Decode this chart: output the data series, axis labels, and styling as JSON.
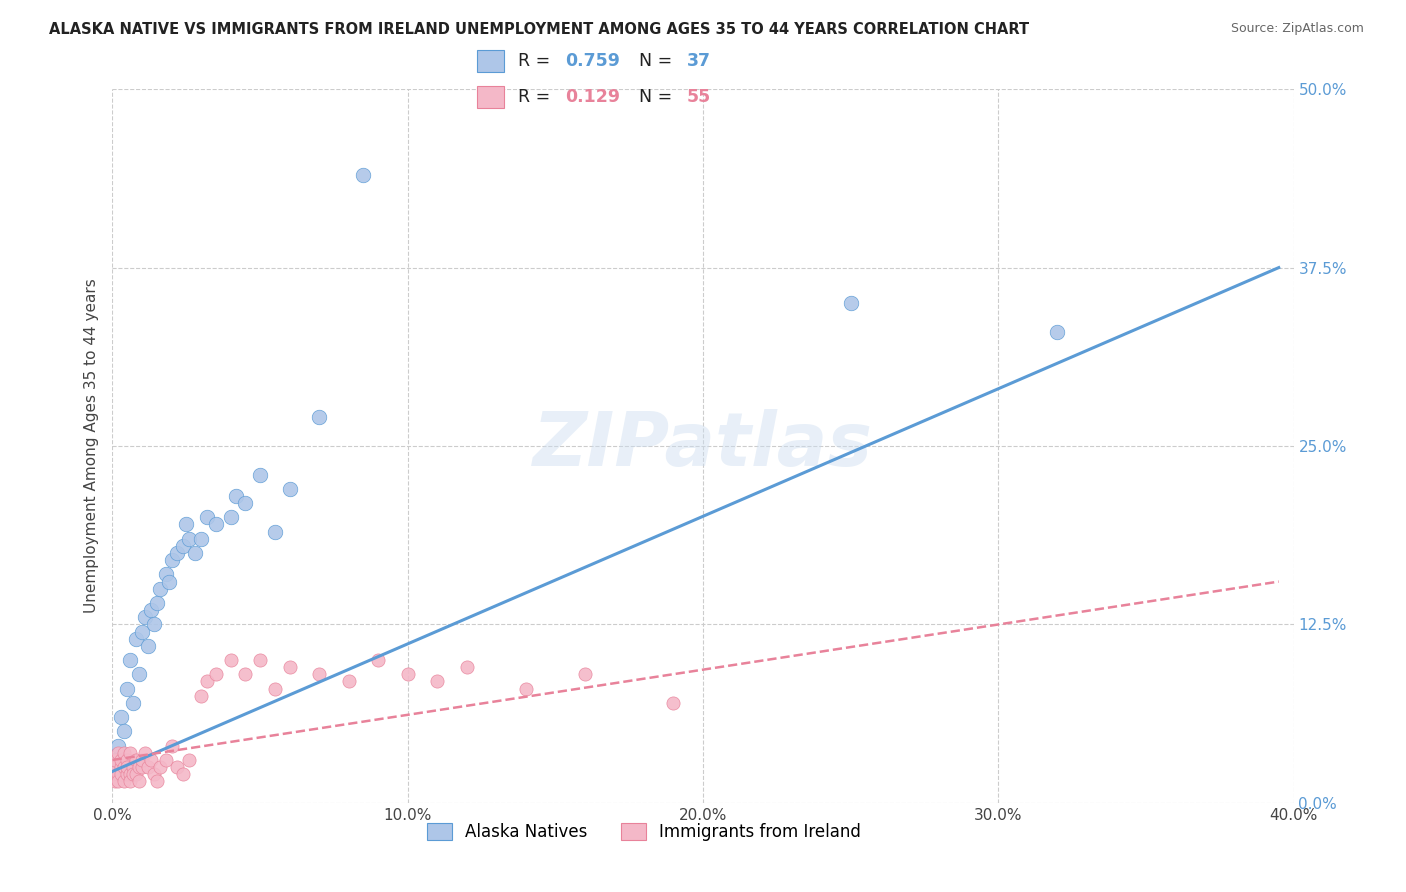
{
  "title": "ALASKA NATIVE VS IMMIGRANTS FROM IRELAND UNEMPLOYMENT AMONG AGES 35 TO 44 YEARS CORRELATION CHART",
  "source": "Source: ZipAtlas.com",
  "xlabel_ticks": [
    "0.0%",
    "",
    "",
    "",
    "10.0%",
    "",
    "",
    "",
    "20.0%",
    "",
    "",
    "",
    "30.0%",
    "",
    "",
    "",
    "40.0%"
  ],
  "xlabel_tick_vals": [
    0.0,
    0.025,
    0.05,
    0.075,
    0.1,
    0.125,
    0.15,
    0.175,
    0.2,
    0.225,
    0.25,
    0.275,
    0.3,
    0.325,
    0.35,
    0.375,
    0.4
  ],
  "xlabel_major_ticks": [
    0.0,
    0.1,
    0.2,
    0.3,
    0.4
  ],
  "xlabel_major_labels": [
    "0.0%",
    "10.0%",
    "20.0%",
    "30.0%",
    "40.0%"
  ],
  "ylabel_ticks": [
    "50.0%",
    "37.5%",
    "25.0%",
    "12.5%",
    "0.0%"
  ],
  "ylabel_tick_vals": [
    0.5,
    0.375,
    0.25,
    0.125,
    0.0
  ],
  "ylabel": "Unemployment Among Ages 35 to 44 years",
  "legend_bottom": [
    "Alaska Natives",
    "Immigrants from Ireland"
  ],
  "alaska_R": "0.759",
  "alaska_N": "37",
  "ireland_R": "0.129",
  "ireland_N": "55",
  "alaska_color": "#aec6e8",
  "ireland_color": "#f4b8c8",
  "alaska_line_color": "#5b9bd5",
  "ireland_line_color": "#e8829a",
  "background_color": "#ffffff",
  "watermark": "ZIPatlas",
  "alaska_line_x0": 0.0,
  "alaska_line_y0": 0.022,
  "alaska_line_x1": 0.395,
  "alaska_line_y1": 0.375,
  "ireland_line_x0": 0.0,
  "ireland_line_y0": 0.03,
  "ireland_line_x1": 0.395,
  "ireland_line_y1": 0.155,
  "alaska_x": [
    0.001,
    0.002,
    0.003,
    0.004,
    0.005,
    0.006,
    0.007,
    0.008,
    0.009,
    0.01,
    0.011,
    0.012,
    0.013,
    0.014,
    0.015,
    0.016,
    0.018,
    0.019,
    0.02,
    0.022,
    0.024,
    0.025,
    0.026,
    0.028,
    0.03,
    0.032,
    0.035,
    0.04,
    0.042,
    0.045,
    0.05,
    0.055,
    0.06,
    0.07,
    0.085,
    0.25,
    0.32
  ],
  "alaska_y": [
    0.03,
    0.04,
    0.06,
    0.05,
    0.08,
    0.1,
    0.07,
    0.115,
    0.09,
    0.12,
    0.13,
    0.11,
    0.135,
    0.125,
    0.14,
    0.15,
    0.16,
    0.155,
    0.17,
    0.175,
    0.18,
    0.195,
    0.185,
    0.175,
    0.185,
    0.2,
    0.195,
    0.2,
    0.215,
    0.21,
    0.23,
    0.19,
    0.22,
    0.27,
    0.44,
    0.35,
    0.33
  ],
  "ireland_x": [
    0.0,
    0.001,
    0.001,
    0.001,
    0.002,
    0.002,
    0.002,
    0.003,
    0.003,
    0.003,
    0.004,
    0.004,
    0.004,
    0.005,
    0.005,
    0.005,
    0.006,
    0.006,
    0.006,
    0.007,
    0.007,
    0.008,
    0.008,
    0.009,
    0.009,
    0.01,
    0.01,
    0.011,
    0.012,
    0.013,
    0.014,
    0.015,
    0.016,
    0.018,
    0.02,
    0.022,
    0.024,
    0.026,
    0.03,
    0.032,
    0.035,
    0.04,
    0.045,
    0.05,
    0.055,
    0.06,
    0.07,
    0.08,
    0.09,
    0.1,
    0.11,
    0.12,
    0.14,
    0.16,
    0.19
  ],
  "ireland_y": [
    0.02,
    0.015,
    0.025,
    0.03,
    0.02,
    0.035,
    0.015,
    0.025,
    0.03,
    0.02,
    0.025,
    0.035,
    0.015,
    0.02,
    0.03,
    0.025,
    0.02,
    0.035,
    0.015,
    0.025,
    0.02,
    0.03,
    0.02,
    0.025,
    0.015,
    0.025,
    0.03,
    0.035,
    0.025,
    0.03,
    0.02,
    0.015,
    0.025,
    0.03,
    0.04,
    0.025,
    0.02,
    0.03,
    0.075,
    0.085,
    0.09,
    0.1,
    0.09,
    0.1,
    0.08,
    0.095,
    0.09,
    0.085,
    0.1,
    0.09,
    0.085,
    0.095,
    0.08,
    0.09,
    0.07
  ]
}
